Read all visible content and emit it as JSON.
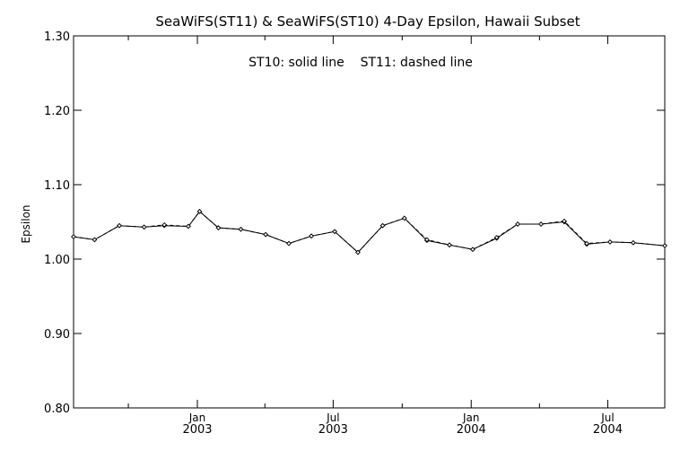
{
  "chart_data": {
    "type": "line",
    "title": "SeaWiFS(ST11) & SeaWiFS(ST10) 4-Day Epsilon, Hawaii Subset",
    "annotation": "ST10: solid line    ST11: dashed line",
    "ylabel": "Epsilon",
    "xlabel": "",
    "ylim": [
      0.8,
      1.3
    ],
    "xlim": [
      "2002-07-20",
      "2004-09-15"
    ],
    "grid": false,
    "yticks": [
      {
        "value": 0.8,
        "label": "0.80"
      },
      {
        "value": 0.9,
        "label": "0.90"
      },
      {
        "value": 1.0,
        "label": "1.00"
      },
      {
        "value": 1.1,
        "label": "1.10"
      },
      {
        "value": 1.2,
        "label": "1.20"
      },
      {
        "value": 1.3,
        "label": "1.30"
      }
    ],
    "xticks": [
      {
        "date": "2003-01-01",
        "month": "Jan",
        "year": "2003"
      },
      {
        "date": "2003-07-01",
        "month": "Jul",
        "year": "2003"
      },
      {
        "date": "2004-01-01",
        "month": "Jan",
        "year": "2004"
      },
      {
        "date": "2004-07-01",
        "month": "Jul",
        "year": "2004"
      }
    ],
    "x_minor_ticks": [
      "2002-10-01",
      "2003-04-01",
      "2003-10-01",
      "2004-04-01"
    ],
    "series": [
      {
        "name": "ST10",
        "style": "solid",
        "x": [
          "2002-07-20",
          "2002-08-17",
          "2002-09-19",
          "2002-10-22",
          "2002-11-18",
          "2002-12-20",
          "2003-01-04",
          "2003-01-29",
          "2003-02-28",
          "2003-04-02",
          "2003-05-03",
          "2003-06-02",
          "2003-07-03",
          "2003-08-03",
          "2003-09-05",
          "2003-10-04",
          "2003-11-03",
          "2003-12-03",
          "2004-01-03",
          "2004-02-04",
          "2004-03-03",
          "2004-04-03",
          "2004-05-04",
          "2004-06-03",
          "2004-07-04",
          "2004-08-04",
          "2004-09-15"
        ],
        "values": [
          1.03,
          1.026,
          1.045,
          1.043,
          1.045,
          1.044,
          1.064,
          1.042,
          1.04,
          1.033,
          1.021,
          1.031,
          1.037,
          1.009,
          1.045,
          1.055,
          1.025,
          1.019,
          1.013,
          1.028,
          1.047,
          1.047,
          1.05,
          1.02,
          1.023,
          1.022,
          1.018
        ]
      },
      {
        "name": "ST11",
        "style": "dashed",
        "x": [
          "2002-07-20",
          "2002-08-17",
          "2002-09-19",
          "2002-10-22",
          "2002-11-18",
          "2002-12-20",
          "2003-01-04",
          "2003-01-29",
          "2003-02-28",
          "2003-04-02",
          "2003-05-03",
          "2003-06-02",
          "2003-07-03",
          "2003-08-03",
          "2003-09-05",
          "2003-10-04",
          "2003-11-03",
          "2003-12-03",
          "2004-01-03",
          "2004-02-04",
          "2004-03-03",
          "2004-04-03",
          "2004-05-04",
          "2004-06-03",
          "2004-07-04",
          "2004-08-04",
          "2004-09-15"
        ],
        "values": [
          1.03,
          1.026,
          1.045,
          1.043,
          1.046,
          1.044,
          1.064,
          1.042,
          1.04,
          1.033,
          1.021,
          1.031,
          1.037,
          1.009,
          1.045,
          1.055,
          1.026,
          1.019,
          1.013,
          1.029,
          1.047,
          1.047,
          1.051,
          1.021,
          1.023,
          1.022,
          1.018
        ]
      }
    ]
  }
}
